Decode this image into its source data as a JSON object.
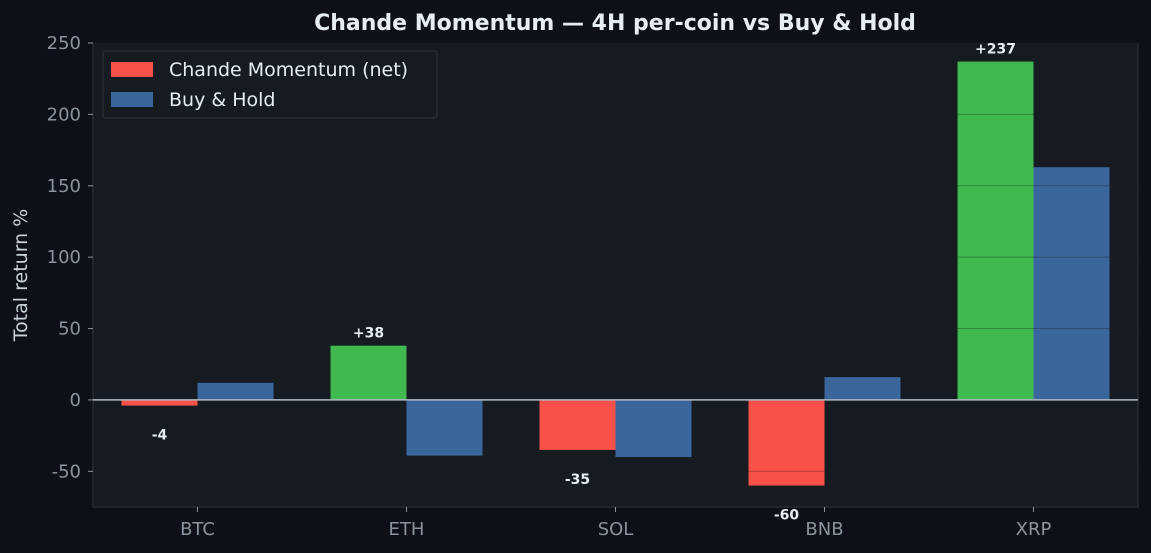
{
  "chart_data": {
    "type": "bar",
    "title": "Chande Momentum — 4H per-coin vs Buy & Hold",
    "ylabel": "Total return %",
    "xlabel": "",
    "ylim": [
      -75,
      250
    ],
    "yticks": [
      -50,
      0,
      50,
      100,
      150,
      200,
      250
    ],
    "categories": [
      "BTC",
      "ETH",
      "SOL",
      "BNB",
      "XRP"
    ],
    "series": [
      {
        "name": "Chande Momentum (net)",
        "values": [
          -4,
          38,
          -35,
          -60,
          237
        ],
        "labels": [
          "-4",
          "+38",
          "-35",
          "-60",
          "+237"
        ],
        "positive_color": "#3fb950",
        "negative_color": "#f85149"
      },
      {
        "name": "Buy & Hold",
        "values": [
          12,
          -39,
          -40,
          16,
          163
        ],
        "color": "#3b669c"
      }
    ],
    "legend_position": "top-left",
    "grid": true
  }
}
